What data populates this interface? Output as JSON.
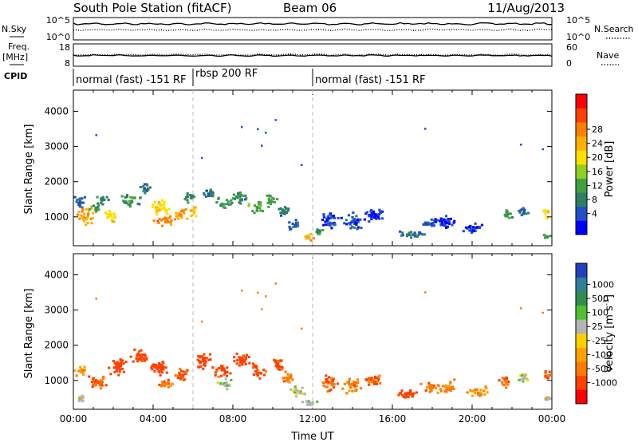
{
  "header": {
    "station": "South Pole Station (fitACF)",
    "beam": "Beam 06",
    "date": "11/Aug/2013"
  },
  "side_labels": {
    "nsky": "N.Sky",
    "freq": "Freq.",
    "freq_unit": "[MHz]",
    "cpid": "CPID",
    "nsearch": "N.Search",
    "nave": "Nave"
  },
  "cpid_segments": [
    {
      "label": "normal (fast) -151 RF",
      "start_hr": 0,
      "end_hr": 6
    },
    {
      "label": "rbsp 200 RF",
      "start_hr": 6,
      "end_hr": 12
    },
    {
      "label": "normal (fast) -151 RF",
      "start_hr": 12,
      "end_hr": 24
    }
  ],
  "chart_data": [
    {
      "type": "line",
      "name": "noise",
      "left_axis": {
        "label": "N.Sky",
        "ticks": [
          "10^5",
          "10^0"
        ]
      },
      "right_axis": {
        "label": "N.Search",
        "ticks": [
          "10^5",
          "10^0"
        ]
      },
      "series": [
        {
          "name": "N.Sky",
          "style": "solid",
          "level": 0.28
        },
        {
          "name": "N.Search",
          "style": "dotted",
          "level": 0.55
        }
      ]
    },
    {
      "type": "line",
      "name": "frequency",
      "left_axis": {
        "label": "Freq. [MHz]",
        "ticks": [
          "18",
          "8"
        ],
        "ylim": [
          8,
          18
        ]
      },
      "right_axis": {
        "label": "Nave",
        "ticks": [
          "60",
          "0"
        ],
        "ylim": [
          0,
          60
        ]
      },
      "series": [
        {
          "name": "Freq.",
          "style": "solid",
          "value_mhz": 12.8
        },
        {
          "name": "Nave",
          "style": "dotted",
          "value": 31
        }
      ]
    },
    {
      "type": "heatmap",
      "name": "power",
      "xlabel": "",
      "ylabel": "Slant Range [km]",
      "xlim_hr": [
        0,
        24
      ],
      "ylim_km": [
        180,
        4600
      ],
      "yticks": [
        1000,
        2000,
        3000,
        4000
      ],
      "colorbar": {
        "label": "Power [dB]",
        "ticks": [
          "4",
          "8",
          "12",
          "16",
          "20",
          "24",
          "28"
        ],
        "colors": [
          "#0000ff",
          "#2050c8",
          "#2f7f66",
          "#40a040",
          "#90d020",
          "#ffe000",
          "#ffb000",
          "#ff8000",
          "#ff4000",
          "#ff0000"
        ]
      },
      "blobs": [
        {
          "t": 0.3,
          "r": 1450,
          "dt": 0.4,
          "dr": 220,
          "v": 8
        },
        {
          "t": 0.6,
          "r": 1050,
          "dt": 0.55,
          "dr": 280,
          "v": 22
        },
        {
          "t": 1.0,
          "r": 1300,
          "dt": 0.35,
          "dr": 200,
          "v": 12
        },
        {
          "t": 1.4,
          "r": 1500,
          "dt": 0.4,
          "dr": 180,
          "v": 10
        },
        {
          "t": 1.8,
          "r": 1050,
          "dt": 0.5,
          "dr": 250,
          "v": 18
        },
        {
          "t": 2.8,
          "r": 1500,
          "dt": 0.6,
          "dr": 250,
          "v": 11
        },
        {
          "t": 3.5,
          "r": 1800,
          "dt": 0.45,
          "dr": 220,
          "v": 9
        },
        {
          "t": 4.3,
          "r": 1300,
          "dt": 0.6,
          "dr": 280,
          "v": 19
        },
        {
          "t": 4.5,
          "r": 950,
          "dt": 0.6,
          "dr": 200,
          "v": 25
        },
        {
          "t": 5.3,
          "r": 1100,
          "dt": 0.5,
          "dr": 220,
          "v": 23
        },
        {
          "t": 5.8,
          "r": 1600,
          "dt": 0.35,
          "dr": 240,
          "v": 10
        },
        {
          "t": 6.0,
          "r": 1200,
          "dt": 0.35,
          "dr": 220,
          "v": 20
        },
        {
          "t": 6.8,
          "r": 1700,
          "dt": 0.5,
          "dr": 250,
          "v": 9
        },
        {
          "t": 7.5,
          "r": 1400,
          "dt": 0.5,
          "dr": 200,
          "v": 12
        },
        {
          "t": 8.3,
          "r": 1600,
          "dt": 0.55,
          "dr": 250,
          "v": 11
        },
        {
          "t": 9.1,
          "r": 1300,
          "dt": 0.5,
          "dr": 220,
          "v": 13
        },
        {
          "t": 9.8,
          "r": 1500,
          "dt": 0.4,
          "dr": 220,
          "v": 12
        },
        {
          "t": 10.5,
          "r": 1200,
          "dt": 0.5,
          "dr": 220,
          "v": 9
        },
        {
          "t": 11.0,
          "r": 800,
          "dt": 0.45,
          "dr": 200,
          "v": 8
        },
        {
          "t": 11.7,
          "r": 450,
          "dt": 0.45,
          "dr": 120,
          "v": 21
        },
        {
          "t": 12.3,
          "r": 600,
          "dt": 0.35,
          "dr": 150,
          "v": 12
        },
        {
          "t": 12.8,
          "r": 950,
          "dt": 0.6,
          "dr": 300,
          "v": 5
        },
        {
          "t": 14.0,
          "r": 900,
          "dt": 0.7,
          "dr": 280,
          "v": 6
        },
        {
          "t": 15.0,
          "r": 1100,
          "dt": 0.6,
          "dr": 280,
          "v": 5
        },
        {
          "t": 17.0,
          "r": 550,
          "dt": 0.9,
          "dr": 150,
          "v": 8
        },
        {
          "t": 17.8,
          "r": 800,
          "dt": 0.5,
          "dr": 200,
          "v": 6
        },
        {
          "t": 18.5,
          "r": 900,
          "dt": 0.8,
          "dr": 250,
          "v": 5
        },
        {
          "t": 20.0,
          "r": 700,
          "dt": 0.7,
          "dr": 200,
          "v": 5
        },
        {
          "t": 21.7,
          "r": 1100,
          "dt": 0.4,
          "dr": 200,
          "v": 11
        },
        {
          "t": 22.5,
          "r": 1200,
          "dt": 0.4,
          "dr": 200,
          "v": 8
        },
        {
          "t": 23.7,
          "r": 1100,
          "dt": 0.3,
          "dr": 200,
          "v": 20
        },
        {
          "t": 23.7,
          "r": 500,
          "dt": 0.3,
          "dr": 120,
          "v": 12
        }
      ]
    },
    {
      "type": "heatmap",
      "name": "velocity",
      "xlabel": "Time UT",
      "ylabel": "Slant Range [km]",
      "xlim_hr": [
        0,
        24
      ],
      "ylim_km": [
        180,
        4600
      ],
      "xticks": [
        "00:00",
        "04:00",
        "08:00",
        "12:00",
        "16:00",
        "20:00",
        "00:00"
      ],
      "yticks": [
        1000,
        2000,
        3000,
        4000
      ],
      "colorbar": {
        "label": "Velocity [m s",
        "label_superscript": "-1",
        "label_close": "]",
        "ticks": [
          "1000",
          "500",
          "100",
          "25",
          "-25",
          "-100",
          "-500",
          "-1000"
        ],
        "colors": [
          "#2040c0",
          "#2f7f99",
          "#2f8f50",
          "#50c030",
          "#b4b4b4",
          "#ffd000",
          "#ffa000",
          "#ff7a00",
          "#ff4000",
          "#ff0000"
        ]
      },
      "blobs": [
        {
          "t": 0.3,
          "r": 1300,
          "dt": 0.4,
          "dr": 200,
          "v": -80
        },
        {
          "t": 0.3,
          "r": 500,
          "dt": 0.4,
          "dr": 150,
          "v": 60
        },
        {
          "t": 1.2,
          "r": 1000,
          "dt": 0.6,
          "dr": 280,
          "v": -200
        },
        {
          "t": 2.2,
          "r": 1450,
          "dt": 0.6,
          "dr": 300,
          "v": -300
        },
        {
          "t": 3.3,
          "r": 1700,
          "dt": 0.6,
          "dr": 300,
          "v": -250
        },
        {
          "t": 4.3,
          "r": 1350,
          "dt": 0.7,
          "dr": 300,
          "v": -300
        },
        {
          "t": 4.6,
          "r": 900,
          "dt": 0.5,
          "dr": 200,
          "v": -150
        },
        {
          "t": 5.4,
          "r": 1200,
          "dt": 0.5,
          "dr": 250,
          "v": -200
        },
        {
          "t": 6.5,
          "r": 1600,
          "dt": 0.6,
          "dr": 300,
          "v": -300
        },
        {
          "t": 7.4,
          "r": 1300,
          "dt": 0.6,
          "dr": 250,
          "v": -250
        },
        {
          "t": 7.6,
          "r": 900,
          "dt": 0.5,
          "dr": 200,
          "v": 80
        },
        {
          "t": 8.4,
          "r": 1600,
          "dt": 0.6,
          "dr": 260,
          "v": -400
        },
        {
          "t": 9.2,
          "r": 1300,
          "dt": 0.5,
          "dr": 250,
          "v": -200
        },
        {
          "t": 10.2,
          "r": 1500,
          "dt": 0.5,
          "dr": 250,
          "v": -250
        },
        {
          "t": 10.7,
          "r": 1100,
          "dt": 0.5,
          "dr": 220,
          "v": -150
        },
        {
          "t": 11.2,
          "r": 700,
          "dt": 0.5,
          "dr": 200,
          "v": 60
        },
        {
          "t": 11.8,
          "r": 400,
          "dt": 0.5,
          "dr": 120,
          "v": 70
        },
        {
          "t": 12.8,
          "r": 950,
          "dt": 0.6,
          "dr": 280,
          "v": -200
        },
        {
          "t": 14.0,
          "r": 900,
          "dt": 0.7,
          "dr": 260,
          "v": -150
        },
        {
          "t": 15.0,
          "r": 1050,
          "dt": 0.6,
          "dr": 250,
          "v": -200
        },
        {
          "t": 16.8,
          "r": 650,
          "dt": 0.9,
          "dr": 180,
          "v": -300
        },
        {
          "t": 17.8,
          "r": 850,
          "dt": 0.5,
          "dr": 200,
          "v": -150
        },
        {
          "t": 18.7,
          "r": 850,
          "dt": 0.7,
          "dr": 250,
          "v": -120
        },
        {
          "t": 20.2,
          "r": 700,
          "dt": 0.7,
          "dr": 200,
          "v": -120
        },
        {
          "t": 21.6,
          "r": 1000,
          "dt": 0.4,
          "dr": 220,
          "v": -200
        },
        {
          "t": 22.5,
          "r": 1100,
          "dt": 0.4,
          "dr": 200,
          "v": 60
        },
        {
          "t": 23.7,
          "r": 1150,
          "dt": 0.3,
          "dr": 200,
          "v": -200
        },
        {
          "t": 23.7,
          "r": 550,
          "dt": 0.3,
          "dr": 130,
          "v": 80
        }
      ]
    }
  ]
}
